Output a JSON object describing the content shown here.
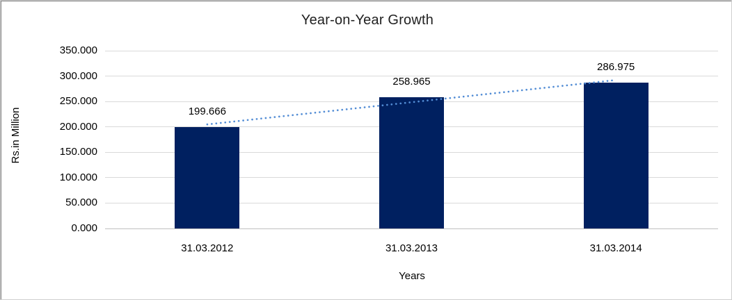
{
  "chart_data": {
    "type": "bar",
    "title": "Year-on-Year Growth",
    "xlabel": "Years",
    "ylabel": "Rs.in Million",
    "categories": [
      "31.03.2012",
      "31.03.2013",
      "31.03.2014"
    ],
    "values": [
      199.666,
      258.965,
      286.975
    ],
    "data_labels": [
      "199.666",
      "258.965",
      "286.975"
    ],
    "ylim": [
      0,
      350
    ],
    "ytick_step": 50,
    "ytick_labels": [
      "0.000",
      "50.000",
      "100.000",
      "150.000",
      "200.000",
      "250.000",
      "300.000",
      "350.000"
    ],
    "grid": true,
    "legend": "none",
    "bar_color": "#002060",
    "gridline_color": "#d9d9d9",
    "axis_line_color": "#bfbfbf",
    "text_color": "#000000",
    "trendline": {
      "type": "linear",
      "style": "dotted",
      "color": "#538DD5"
    }
  }
}
